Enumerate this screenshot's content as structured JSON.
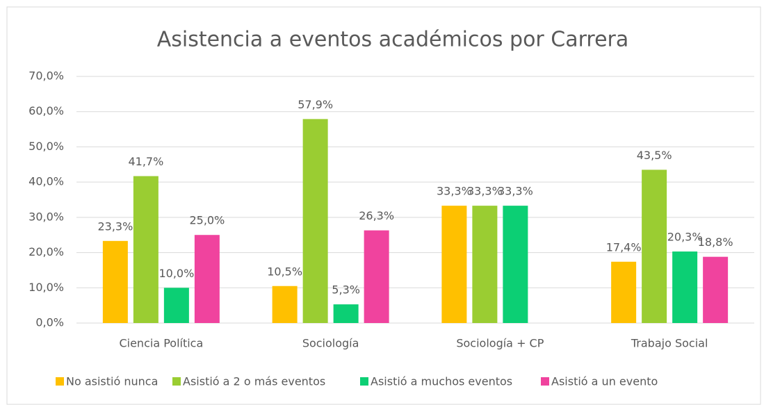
{
  "chart_data": {
    "type": "bar",
    "title": "Asistencia a eventos académicos por Carrera",
    "categories": [
      "Ciencia Política",
      "Sociología",
      "Sociología + CP",
      "Trabajo Social"
    ],
    "series": [
      {
        "name": "No asistió nunca",
        "color": "#ffc000",
        "values": [
          23.3,
          10.5,
          33.3,
          17.4
        ],
        "value_labels": [
          "23,3%",
          "10,5%",
          "33,3%",
          "17,4%"
        ]
      },
      {
        "name": "Asistió a 2 o más eventos",
        "color": "#9acd32",
        "values": [
          41.7,
          57.9,
          33.3,
          43.5
        ],
        "value_labels": [
          "41,7%",
          "57,9%",
          "33,3%",
          "43,5%"
        ]
      },
      {
        "name": "Asistió a muchos eventos",
        "color": "#0ccf74",
        "values": [
          10.0,
          5.3,
          33.3,
          20.3
        ],
        "value_labels": [
          "10,0%",
          "5,3%",
          "33,3%",
          "20,3%"
        ]
      },
      {
        "name": "Asistió a un evento",
        "color": "#f0439e",
        "values": [
          25.0,
          26.3,
          null,
          18.8
        ],
        "value_labels": [
          "25,0%",
          "26,3%",
          null,
          "18,8%"
        ]
      }
    ],
    "ylim": [
      0,
      70
    ],
    "yticks": [
      {
        "value": 0,
        "label": "0,0%"
      },
      {
        "value": 10,
        "label": "10,0%"
      },
      {
        "value": 20,
        "label": "20,0%"
      },
      {
        "value": 30,
        "label": "30,0%"
      },
      {
        "value": 40,
        "label": "40,0%"
      },
      {
        "value": 50,
        "label": "50,0%"
      },
      {
        "value": 60,
        "label": "60,0%"
      },
      {
        "value": 70,
        "label": "70,0%"
      }
    ],
    "grid": true,
    "legend": "bottom"
  }
}
